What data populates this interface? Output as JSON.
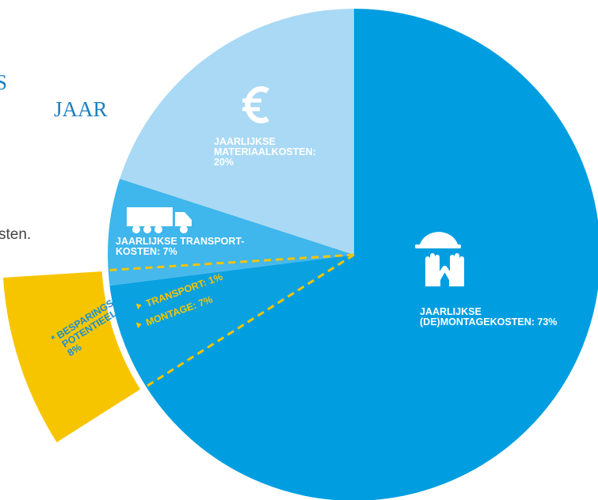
{
  "chart_data": {
    "type": "pie",
    "heading_lines": [
      "S",
      "JAAR"
    ],
    "body_text": "sten.",
    "categories": [
      [
        "JAARLIJKSE",
        "(DE)MONTAGEKOSTEN:"
      ],
      [
        "JAARLIJKSE TRANSPORT-",
        "KOSTEN:"
      ],
      [
        "JAARLIJKSE",
        "MATERIAALKOSTEN:"
      ]
    ],
    "values": [
      73,
      7,
      20
    ],
    "value_labels": [
      "73%",
      "7%",
      "20%"
    ],
    "colors": [
      "#009ee0",
      "#3fb6ec",
      "#a9d9f4"
    ],
    "savings": {
      "label_lines": [
        "* BESPARINGS-",
        "POTENTIEEL:"
      ],
      "value": 8,
      "value_label": "8%",
      "color": "#f7c500",
      "breakdown": [
        {
          "label": "TRANSPORT:",
          "value": 1,
          "value_label": "1%"
        },
        {
          "label": "MONTAGE:",
          "value": 7,
          "value_label": "7%"
        }
      ]
    }
  }
}
